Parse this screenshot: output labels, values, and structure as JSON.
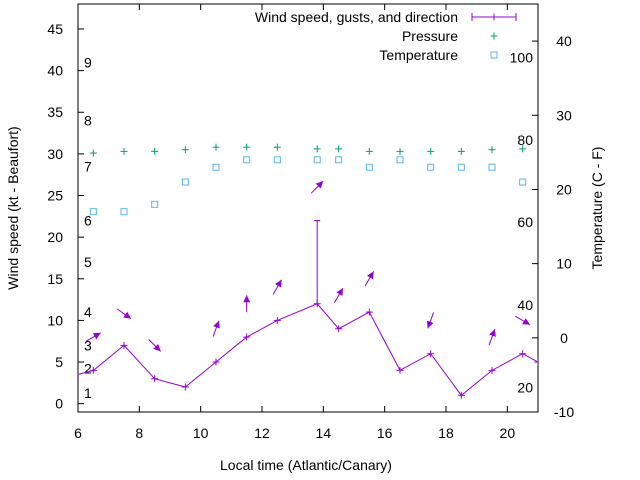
{
  "colors": {
    "wind": "#9400d3",
    "pressure": "#009e73",
    "temperature": "#56b4e9",
    "axis": "#000000"
  },
  "chart_data": {
    "type": "line",
    "xlabel": "Local time (Atlantic/Canary)",
    "ylabel": "Wind speed (kt - Beaufort)",
    "y2label": "Temperature (C - F)",
    "xlim": [
      6,
      21
    ],
    "ylim": [
      -1,
      48
    ],
    "y2lim": [
      -10,
      45
    ],
    "xticks": [
      6,
      8,
      10,
      12,
      14,
      16,
      18,
      20
    ],
    "yticks": [
      0,
      5,
      10,
      15,
      20,
      25,
      30,
      35,
      40,
      45
    ],
    "y2ticks": [
      -10,
      0,
      10,
      20,
      30,
      40
    ],
    "legend_position": "top-right",
    "legend": [
      {
        "label": "Wind speed, gusts, and direction",
        "series": "wind"
      },
      {
        "label": "Pressure",
        "series": "pressure"
      },
      {
        "label": "Temperature",
        "series": "temperature"
      }
    ],
    "beaufort_labels": [
      {
        "label": "1",
        "kt": 1.3
      },
      {
        "label": "2",
        "kt": 4.2
      },
      {
        "label": "3",
        "kt": 7.0
      },
      {
        "label": "4",
        "kt": 11.0
      },
      {
        "label": "5",
        "kt": 17.0
      },
      {
        "label": "6",
        "kt": 22.0
      },
      {
        "label": "7",
        "kt": 28.5
      },
      {
        "label": "8",
        "kt": 34.0
      },
      {
        "label": "9",
        "kt": 41.0
      }
    ],
    "fahrenheit_labels": [
      {
        "label": "20",
        "c": -6.7
      },
      {
        "label": "40",
        "c": 4.4
      },
      {
        "label": "60",
        "c": 15.6
      },
      {
        "label": "80",
        "c": 26.7
      },
      {
        "label": "100",
        "c": 37.8
      }
    ],
    "series": {
      "wind": {
        "name": "Wind speed, gusts, and direction",
        "axis": "y1",
        "x": [
          5.5,
          6.5,
          7.5,
          8.5,
          9.5,
          10.5,
          11.5,
          12.5,
          13.8,
          14.5,
          15.5,
          16.5,
          17.5,
          18.5,
          19.5,
          20.5,
          21.0
        ],
        "y": [
          3,
          4,
          7,
          3,
          2,
          5,
          8,
          10,
          12,
          9,
          11,
          4,
          6,
          1,
          4,
          6,
          5
        ]
      },
      "gusts": [
        {
          "x": 13.8,
          "low": 12,
          "high": 22
        }
      ],
      "direction_arrows": [
        {
          "x": 6.5,
          "y": 8.0,
          "dir_deg": 60
        },
        {
          "x": 7.5,
          "y": 10.8,
          "dir_deg": 125
        },
        {
          "x": 8.5,
          "y": 7.0,
          "dir_deg": 135
        },
        {
          "x": 10.5,
          "y": 9.0,
          "dir_deg": 20
        },
        {
          "x": 11.5,
          "y": 12.0,
          "dir_deg": 0
        },
        {
          "x": 12.5,
          "y": 14.0,
          "dir_deg": 30
        },
        {
          "x": 13.8,
          "y": 26.0,
          "dir_deg": 45
        },
        {
          "x": 14.5,
          "y": 13.0,
          "dir_deg": 30
        },
        {
          "x": 15.5,
          "y": 15.0,
          "dir_deg": 30
        },
        {
          "x": 17.5,
          "y": 10.0,
          "dir_deg": 200
        },
        {
          "x": 19.5,
          "y": 8.0,
          "dir_deg": 20
        },
        {
          "x": 20.5,
          "y": 10.0,
          "dir_deg": 120
        }
      ],
      "pressure": {
        "name": "Pressure",
        "axis": "y1",
        "x": [
          6.5,
          7.5,
          8.5,
          9.5,
          10.5,
          11.5,
          12.5,
          13.8,
          14.5,
          15.5,
          16.5,
          17.5,
          18.5,
          19.5,
          20.5
        ],
        "y": [
          30.1,
          30.3,
          30.3,
          30.5,
          30.8,
          30.8,
          30.8,
          30.6,
          30.6,
          30.3,
          30.3,
          30.3,
          30.3,
          30.5,
          30.6
        ]
      },
      "temperature": {
        "name": "Temperature",
        "axis": "y2",
        "x": [
          6.5,
          7.5,
          8.5,
          9.5,
          10.5,
          11.5,
          12.5,
          13.8,
          14.5,
          15.5,
          16.5,
          17.5,
          18.5,
          19.5,
          20.5
        ],
        "y": [
          17,
          17,
          18,
          21,
          23,
          24,
          24,
          24,
          24,
          23,
          24,
          23,
          23,
          23,
          21
        ]
      }
    }
  }
}
